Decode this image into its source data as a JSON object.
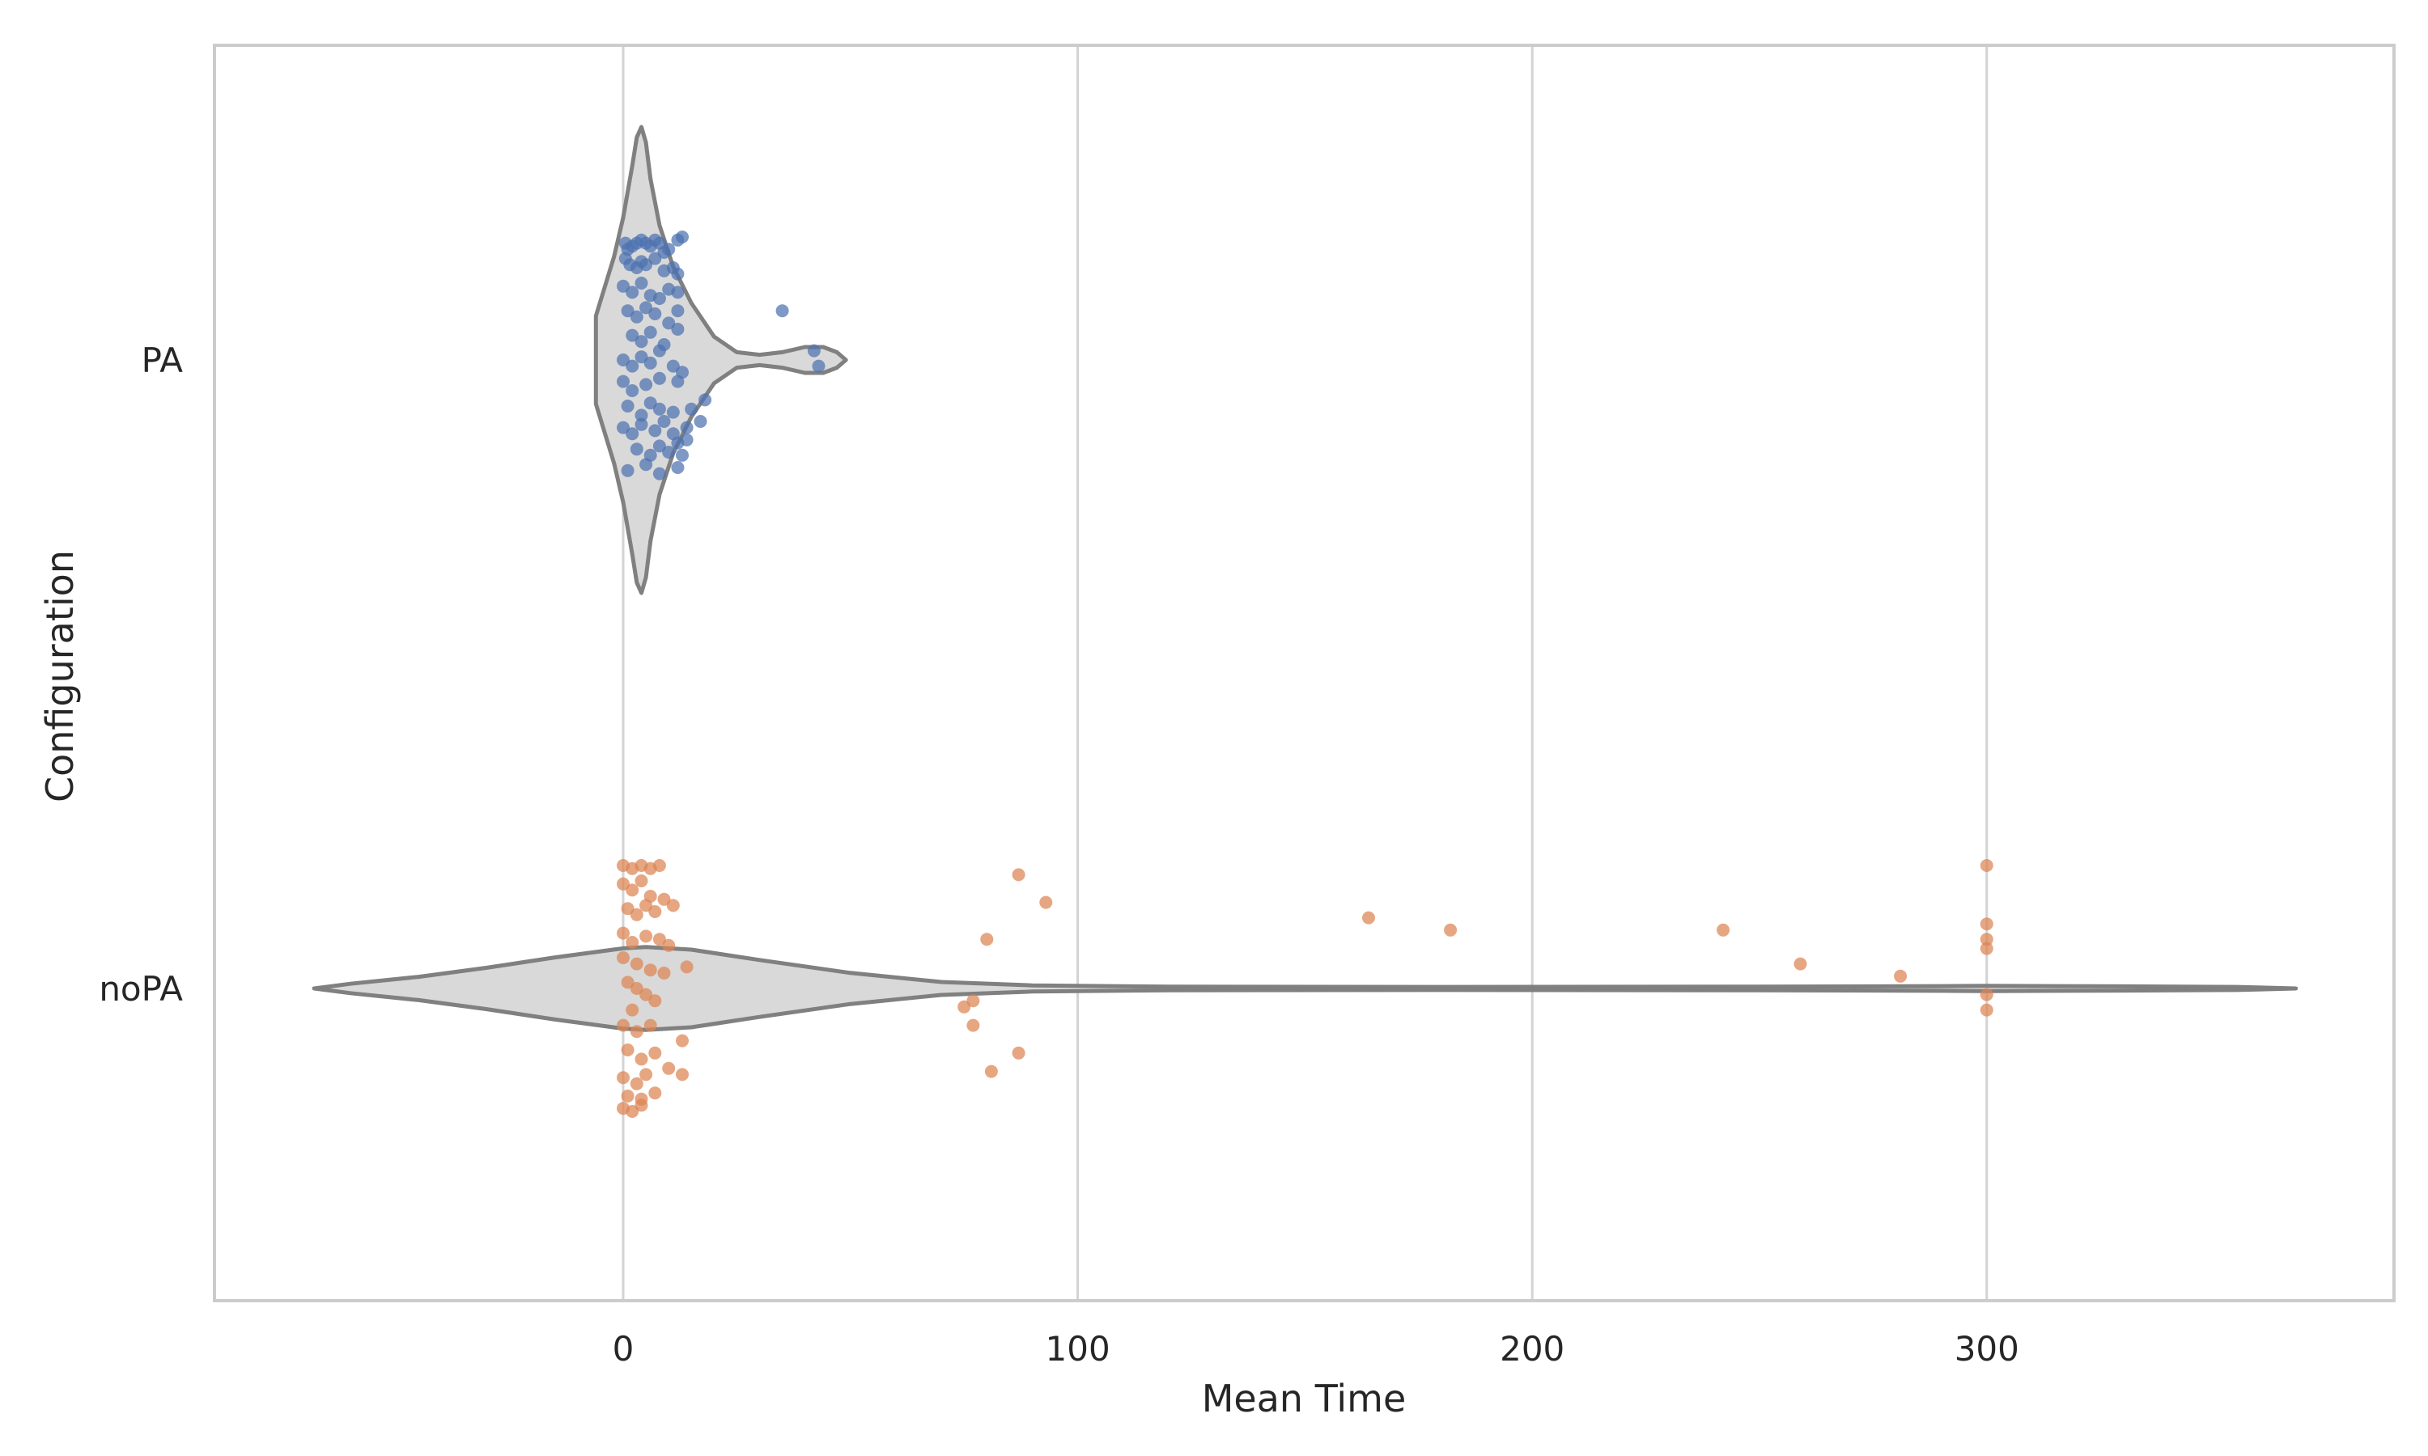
{
  "chart_data": {
    "type": "violin",
    "title": "",
    "xlabel": "Mean Time",
    "ylabel": "Configuration",
    "xlim": [
      -90,
      390
    ],
    "xticks": [
      0,
      100,
      200,
      300
    ],
    "grid": true,
    "colors": {
      "violin_fill": "#d9d9d9",
      "violin_edge": "#808080",
      "grid": "#d3d3d3",
      "frame": "#cccccc"
    },
    "series": [
      {
        "category": "PA",
        "color": "#4c72b0",
        "violin": {
          "min": -6,
          "max": 49,
          "profile": [
            [
              -6,
              0.17
            ],
            [
              -2,
              0.4
            ],
            [
              0,
              0.55
            ],
            [
              2,
              0.75
            ],
            [
              3,
              0.86
            ],
            [
              4,
              0.9
            ],
            [
              5,
              0.84
            ],
            [
              6,
              0.7
            ],
            [
              8,
              0.52
            ],
            [
              11,
              0.36
            ],
            [
              15,
              0.22
            ],
            [
              20,
              0.09
            ],
            [
              25,
              0.03
            ],
            [
              30,
              0.02
            ],
            [
              35,
              0.03
            ],
            [
              40,
              0.05
            ],
            [
              44,
              0.05
            ],
            [
              47,
              0.03
            ],
            [
              49,
              0.0
            ]
          ]
        },
        "points": [
          [
            0.5,
            -0.38
          ],
          [
            1,
            -0.36
          ],
          [
            2,
            -0.37
          ],
          [
            3,
            -0.38
          ],
          [
            4,
            -0.39
          ],
          [
            5,
            -0.38
          ],
          [
            6,
            -0.37
          ],
          [
            7,
            -0.39
          ],
          [
            8,
            -0.38
          ],
          [
            9,
            -0.35
          ],
          [
            10,
            -0.36
          ],
          [
            12,
            -0.39
          ],
          [
            13,
            -0.4
          ],
          [
            0.5,
            -0.33
          ],
          [
            1.5,
            -0.31
          ],
          [
            3,
            -0.3
          ],
          [
            4,
            -0.32
          ],
          [
            5,
            -0.31
          ],
          [
            7,
            -0.33
          ],
          [
            9,
            -0.29
          ],
          [
            11,
            -0.3
          ],
          [
            12,
            -0.28
          ],
          [
            0,
            -0.24
          ],
          [
            2,
            -0.22
          ],
          [
            4,
            -0.25
          ],
          [
            6,
            -0.21
          ],
          [
            8,
            -0.2
          ],
          [
            10,
            -0.23
          ],
          [
            12,
            -0.22
          ],
          [
            1,
            -0.16
          ],
          [
            3,
            -0.14
          ],
          [
            5,
            -0.17
          ],
          [
            7,
            -0.15
          ],
          [
            10,
            -0.12
          ],
          [
            12,
            -0.16
          ],
          [
            2,
            -0.08
          ],
          [
            4,
            -0.06
          ],
          [
            6,
            -0.09
          ],
          [
            9,
            -0.05
          ],
          [
            12,
            -0.1
          ],
          [
            0,
            0.0
          ],
          [
            2,
            0.02
          ],
          [
            4,
            -0.01
          ],
          [
            6,
            0.01
          ],
          [
            8,
            -0.03
          ],
          [
            11,
            0.02
          ],
          [
            13,
            0.04
          ],
          [
            43,
            0.02
          ],
          [
            42,
            -0.03
          ],
          [
            0,
            0.07
          ],
          [
            2,
            0.1
          ],
          [
            5,
            0.08
          ],
          [
            8,
            0.06
          ],
          [
            12,
            0.07
          ],
          [
            1,
            0.15
          ],
          [
            4,
            0.18
          ],
          [
            6,
            0.14
          ],
          [
            8,
            0.16
          ],
          [
            11,
            0.17
          ],
          [
            15,
            0.16
          ],
          [
            18,
            0.13
          ],
          [
            0,
            0.22
          ],
          [
            2,
            0.24
          ],
          [
            4,
            0.21
          ],
          [
            7,
            0.23
          ],
          [
            9,
            0.2
          ],
          [
            11,
            0.24
          ],
          [
            14,
            0.22
          ],
          [
            17,
            0.2
          ],
          [
            3,
            0.29
          ],
          [
            6,
            0.31
          ],
          [
            8,
            0.28
          ],
          [
            10,
            0.3
          ],
          [
            12,
            0.27
          ],
          [
            13,
            0.31
          ],
          [
            14,
            0.26
          ],
          [
            1,
            0.36
          ],
          [
            5,
            0.34
          ],
          [
            8,
            0.37
          ],
          [
            12,
            0.35
          ],
          [
            35,
            -0.16
          ]
        ]
      },
      {
        "category": "noPA",
        "color": "#dd8452",
        "violin": {
          "min": -68,
          "max": 368,
          "profile": [
            [
              -68,
              0.0
            ],
            [
              -60,
              0.018
            ],
            [
              -45,
              0.045
            ],
            [
              -30,
              0.08
            ],
            [
              -15,
              0.12
            ],
            [
              0,
              0.155
            ],
            [
              5,
              0.16
            ],
            [
              15,
              0.15
            ],
            [
              30,
              0.11
            ],
            [
              50,
              0.06
            ],
            [
              70,
              0.025
            ],
            [
              90,
              0.012
            ],
            [
              120,
              0.007
            ],
            [
              180,
              0.006
            ],
            [
              250,
              0.007
            ],
            [
              290,
              0.009
            ],
            [
              300,
              0.01
            ],
            [
              330,
              0.008
            ],
            [
              355,
              0.006
            ],
            [
              368,
              0.0
            ]
          ]
        },
        "points": [
          [
            0,
            -0.4
          ],
          [
            2,
            -0.39
          ],
          [
            4,
            -0.4
          ],
          [
            6,
            -0.39
          ],
          [
            8,
            -0.4
          ],
          [
            0,
            -0.34
          ],
          [
            2,
            -0.32
          ],
          [
            4,
            -0.35
          ],
          [
            6,
            -0.3
          ],
          [
            9,
            -0.29
          ],
          [
            1,
            -0.26
          ],
          [
            3,
            -0.24
          ],
          [
            5,
            -0.27
          ],
          [
            7,
            -0.25
          ],
          [
            11,
            -0.27
          ],
          [
            0,
            -0.18
          ],
          [
            2,
            -0.15
          ],
          [
            5,
            -0.17
          ],
          [
            8,
            -0.16
          ],
          [
            10,
            -0.14
          ],
          [
            0,
            -0.1
          ],
          [
            3,
            -0.08
          ],
          [
            6,
            -0.06
          ],
          [
            9,
            -0.05
          ],
          [
            14,
            -0.07
          ],
          [
            1,
            -0.02
          ],
          [
            3,
            0.0
          ],
          [
            5,
            0.02
          ],
          [
            7,
            0.04
          ],
          [
            2,
            0.07
          ],
          [
            0,
            0.12
          ],
          [
            3,
            0.14
          ],
          [
            6,
            0.12
          ],
          [
            13,
            0.17
          ],
          [
            1,
            0.2
          ],
          [
            4,
            0.23
          ],
          [
            7,
            0.21
          ],
          [
            10,
            0.26
          ],
          [
            0,
            0.29
          ],
          [
            3,
            0.31
          ],
          [
            5,
            0.28
          ],
          [
            13,
            0.28
          ],
          [
            1,
            0.35
          ],
          [
            4,
            0.36
          ],
          [
            7,
            0.34
          ],
          [
            0,
            0.39
          ],
          [
            2,
            0.4
          ],
          [
            4,
            0.38
          ],
          [
            87,
            -0.37
          ],
          [
            93,
            -0.28
          ],
          [
            80,
            -0.16
          ],
          [
            75,
            0.06
          ],
          [
            77,
            0.04
          ],
          [
            77,
            0.12
          ],
          [
            87,
            0.21
          ],
          [
            81,
            0.27
          ],
          [
            164,
            -0.23
          ],
          [
            182,
            -0.19
          ],
          [
            242,
            -0.19
          ],
          [
            259,
            -0.08
          ],
          [
            281,
            -0.04
          ],
          [
            300,
            -0.4
          ],
          [
            300,
            -0.21
          ],
          [
            300,
            -0.16
          ],
          [
            300,
            -0.13
          ],
          [
            300,
            0.02
          ],
          [
            300,
            0.07
          ]
        ]
      }
    ]
  }
}
